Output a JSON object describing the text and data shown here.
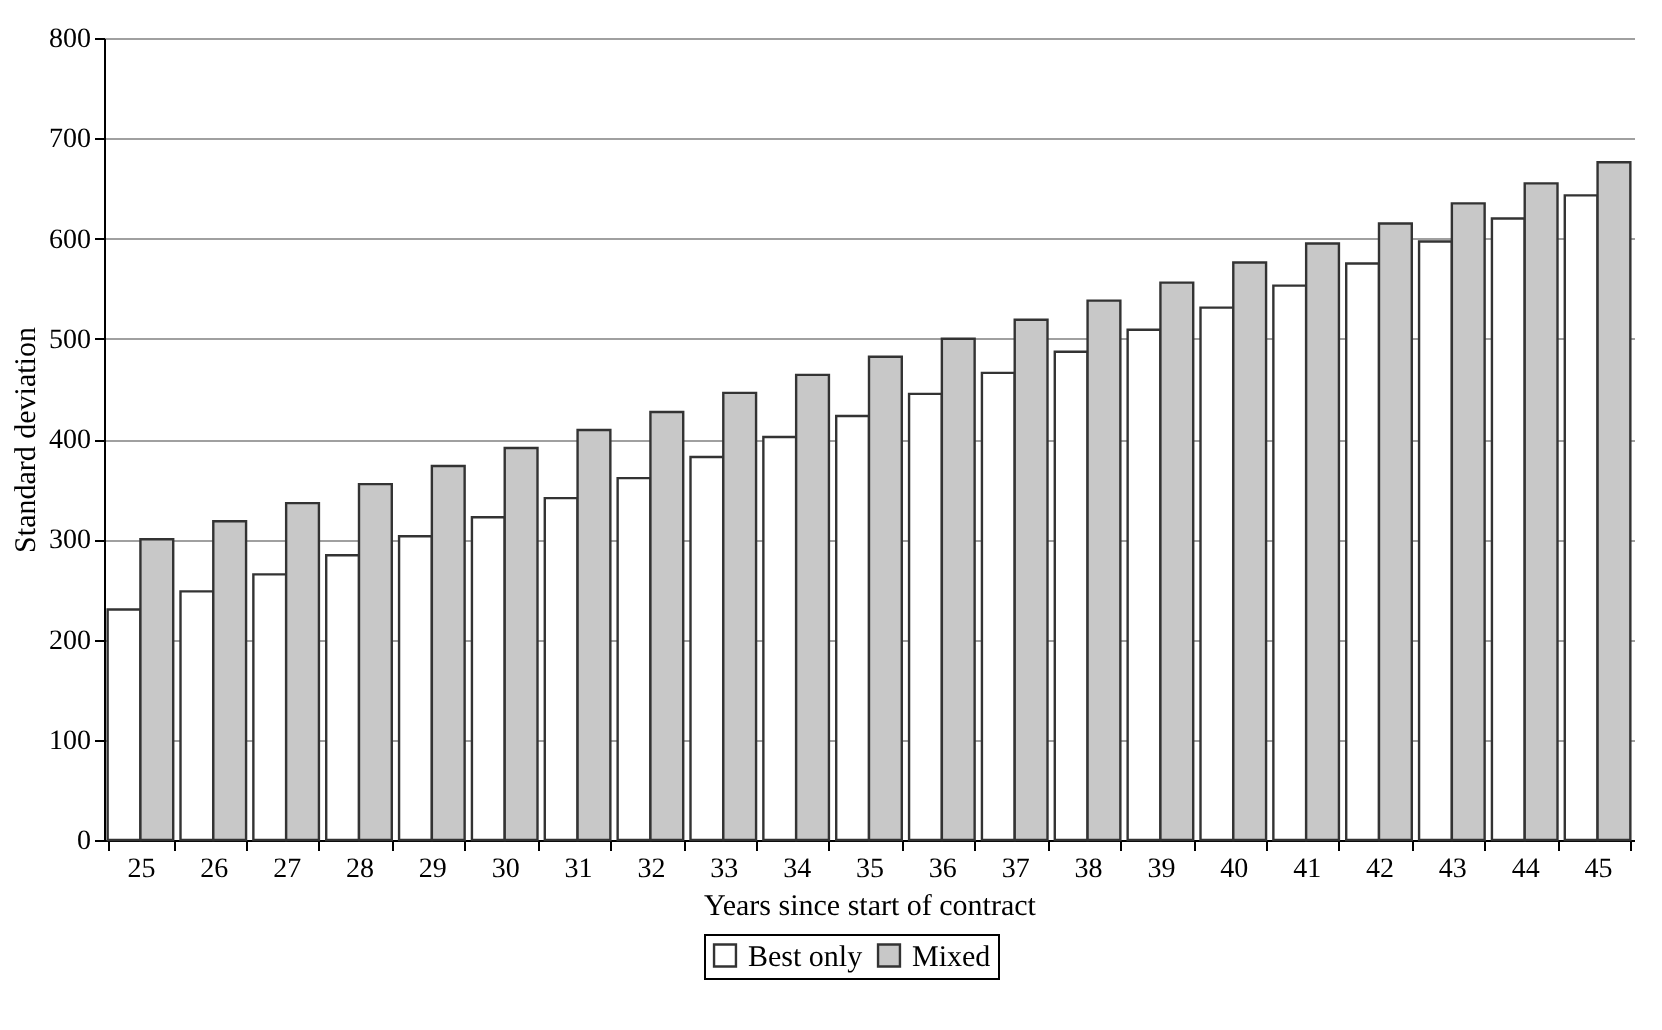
{
  "chart_data": {
    "type": "bar",
    "xlabel": "Years since start of contract",
    "ylabel": "Standard deviation",
    "categories": [
      "25",
      "26",
      "27",
      "28",
      "29",
      "30",
      "31",
      "32",
      "33",
      "34",
      "35",
      "36",
      "37",
      "38",
      "39",
      "40",
      "41",
      "42",
      "43",
      "44",
      "45"
    ],
    "series": [
      {
        "name": "Best only",
        "color": "#ffffff",
        "values": [
          230,
          248,
          265,
          284,
          303,
          322,
          341,
          361,
          382,
          402,
          423,
          445,
          466,
          487,
          509,
          531,
          553,
          575,
          597,
          620,
          643
        ]
      },
      {
        "name": "Mixed",
        "color": "#c8c8c8",
        "values": [
          300,
          318,
          336,
          355,
          373,
          391,
          409,
          427,
          446,
          464,
          482,
          500,
          519,
          538,
          556,
          576,
          595,
          615,
          635,
          655,
          676
        ]
      }
    ],
    "ylim": [
      0,
      800
    ],
    "yticks": [
      0,
      100,
      200,
      300,
      400,
      500,
      600,
      700,
      800
    ],
    "grid": "y",
    "legend": "bottom"
  }
}
